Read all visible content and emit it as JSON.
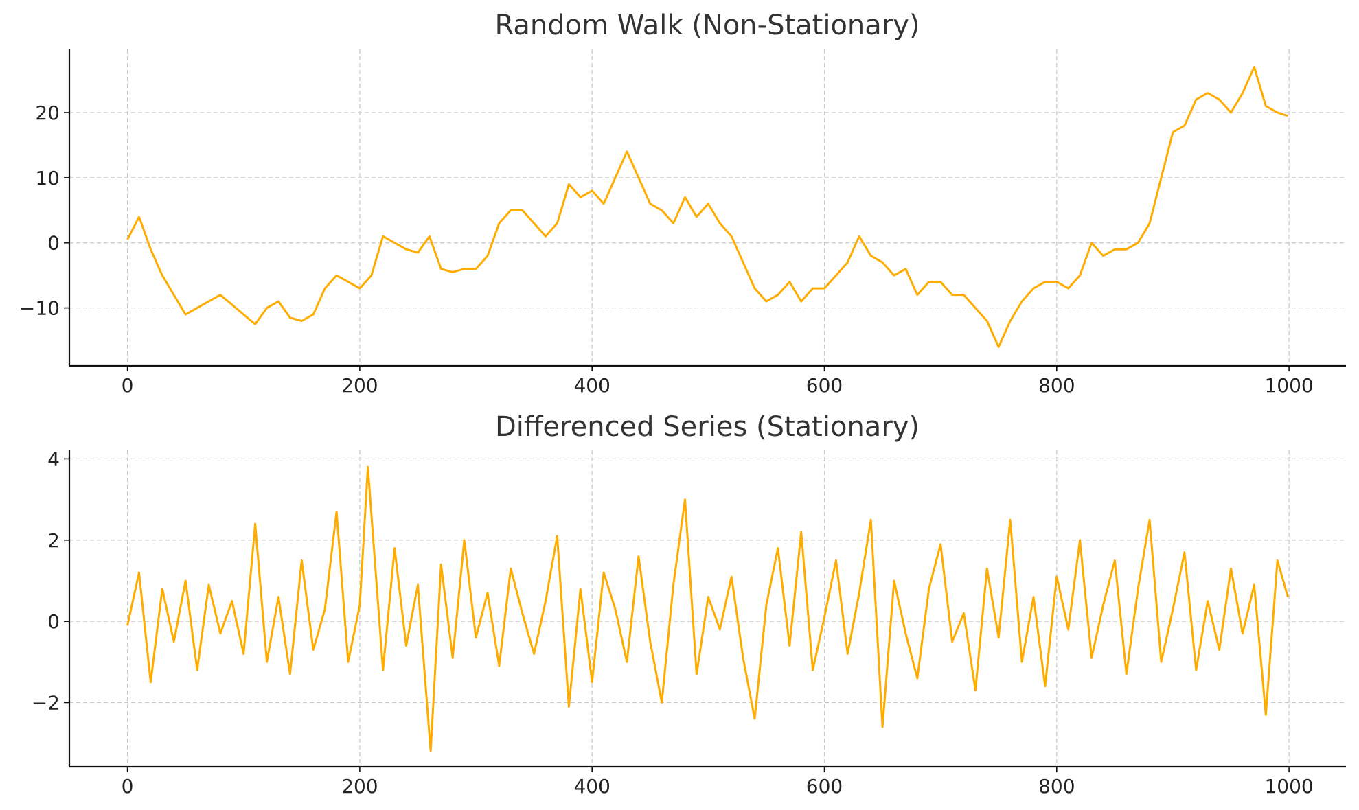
{
  "chart_data": [
    {
      "type": "line",
      "title": "Random Walk (Non-Stationary)",
      "color": "#ffac00",
      "grid": true,
      "x": [
        0,
        10,
        20,
        30,
        40,
        50,
        60,
        70,
        80,
        90,
        100,
        110,
        120,
        130,
        140,
        150,
        160,
        170,
        180,
        190,
        200,
        210,
        220,
        230,
        240,
        250,
        260,
        270,
        280,
        290,
        300,
        310,
        320,
        330,
        340,
        350,
        360,
        370,
        380,
        390,
        400,
        410,
        420,
        430,
        440,
        450,
        460,
        470,
        480,
        490,
        500,
        510,
        520,
        530,
        540,
        550,
        560,
        570,
        580,
        590,
        600,
        610,
        620,
        630,
        640,
        650,
        660,
        670,
        680,
        690,
        700,
        710,
        720,
        730,
        740,
        750,
        760,
        770,
        780,
        790,
        800,
        810,
        820,
        830,
        840,
        850,
        860,
        870,
        880,
        890,
        900,
        910,
        920,
        930,
        940,
        950,
        960,
        970,
        980,
        990,
        999
      ],
      "values": [
        0.5,
        4,
        -1,
        -5,
        -8,
        -11,
        -10,
        -9,
        -8,
        -9.5,
        -11,
        -12.5,
        -10,
        -9,
        -11.5,
        -12,
        -11,
        -7,
        -5,
        -6,
        -7,
        -5,
        1,
        0,
        -1,
        -1.5,
        1,
        -4,
        -4.5,
        -4,
        -4,
        -2,
        3,
        5,
        5,
        3,
        1,
        3,
        9,
        7,
        8,
        6,
        10,
        14,
        10,
        6,
        5,
        3,
        7,
        4,
        6,
        3,
        1,
        -3,
        -7,
        -9,
        -8,
        -6,
        -9,
        -7,
        -7,
        -5,
        -3,
        1,
        -2,
        -3,
        -5,
        -4,
        -8,
        -6,
        -6,
        -8,
        -8,
        -10,
        -12,
        -16,
        -12,
        -9,
        -7,
        -6,
        -6,
        -7,
        -5,
        0,
        -2,
        -1,
        -1,
        0,
        3,
        10,
        17,
        18,
        22,
        23,
        22,
        20,
        23,
        27,
        21,
        20,
        19.5
      ],
      "xlim": [
        -50,
        1049
      ],
      "xticks": [
        0,
        200,
        400,
        600,
        800,
        1000
      ],
      "ylim": [
        -18.9,
        29.7
      ],
      "yticks": [
        {
          "value": -10,
          "label": "−10"
        },
        0,
        10,
        20
      ]
    },
    {
      "type": "line",
      "title": "Differenced Series (Stationary)",
      "color": "#ffac00",
      "grid": true,
      "x": [
        0,
        10,
        20,
        30,
        40,
        50,
        60,
        70,
        80,
        90,
        100,
        110,
        120,
        130,
        140,
        150,
        160,
        170,
        180,
        190,
        200,
        207,
        220,
        230,
        240,
        250,
        261,
        270,
        280,
        290,
        300,
        310,
        320,
        330,
        340,
        350,
        360,
        370,
        380,
        390,
        400,
        410,
        420,
        430,
        440,
        450,
        460,
        470,
        480,
        490,
        500,
        510,
        520,
        530,
        540,
        550,
        560,
        570,
        580,
        590,
        600,
        610,
        620,
        630,
        640,
        650,
        660,
        670,
        680,
        690,
        700,
        710,
        720,
        730,
        740,
        750,
        760,
        770,
        780,
        790,
        800,
        810,
        820,
        830,
        840,
        850,
        860,
        870,
        880,
        890,
        900,
        910,
        920,
        930,
        940,
        950,
        960,
        970,
        980,
        990,
        999
      ],
      "values": [
        -0.1,
        1.2,
        -1.5,
        0.8,
        -0.5,
        1.0,
        -1.2,
        0.9,
        -0.3,
        0.5,
        -0.8,
        2.4,
        -1.0,
        0.6,
        -1.3,
        1.5,
        -0.7,
        0.3,
        2.7,
        -1.0,
        0.4,
        3.8,
        -1.2,
        1.8,
        -0.6,
        0.9,
        -3.2,
        1.4,
        -0.9,
        2.0,
        -0.4,
        0.7,
        -1.1,
        1.3,
        0.2,
        -0.8,
        0.5,
        2.1,
        -2.1,
        0.8,
        -1.5,
        1.2,
        0.3,
        -1.0,
        1.6,
        -0.5,
        -2.0,
        0.9,
        3.0,
        -1.3,
        0.6,
        -0.2,
        1.1,
        -0.9,
        -2.4,
        0.4,
        1.8,
        -0.6,
        2.2,
        -1.2,
        0.1,
        1.5,
        -0.8,
        0.7,
        2.5,
        -2.6,
        1.0,
        -0.3,
        -1.4,
        0.8,
        1.9,
        -0.5,
        0.2,
        -1.7,
        1.3,
        -0.4,
        2.5,
        -1.0,
        0.6,
        -1.6,
        1.1,
        -0.2,
        2.0,
        -0.9,
        0.4,
        1.5,
        -1.3,
        0.8,
        2.5,
        -1.0,
        0.3,
        1.7,
        -1.2,
        0.5,
        -0.7,
        1.3,
        -0.3,
        0.9,
        -2.3,
        1.5,
        0.6
      ],
      "xlim": [
        -50,
        1049
      ],
      "xticks": [
        0,
        200,
        400,
        600,
        800,
        1000
      ],
      "ylim": [
        -3.58,
        4.21
      ],
      "yticks": [
        {
          "value": -2,
          "label": "−2"
        },
        0,
        2,
        4
      ]
    }
  ]
}
